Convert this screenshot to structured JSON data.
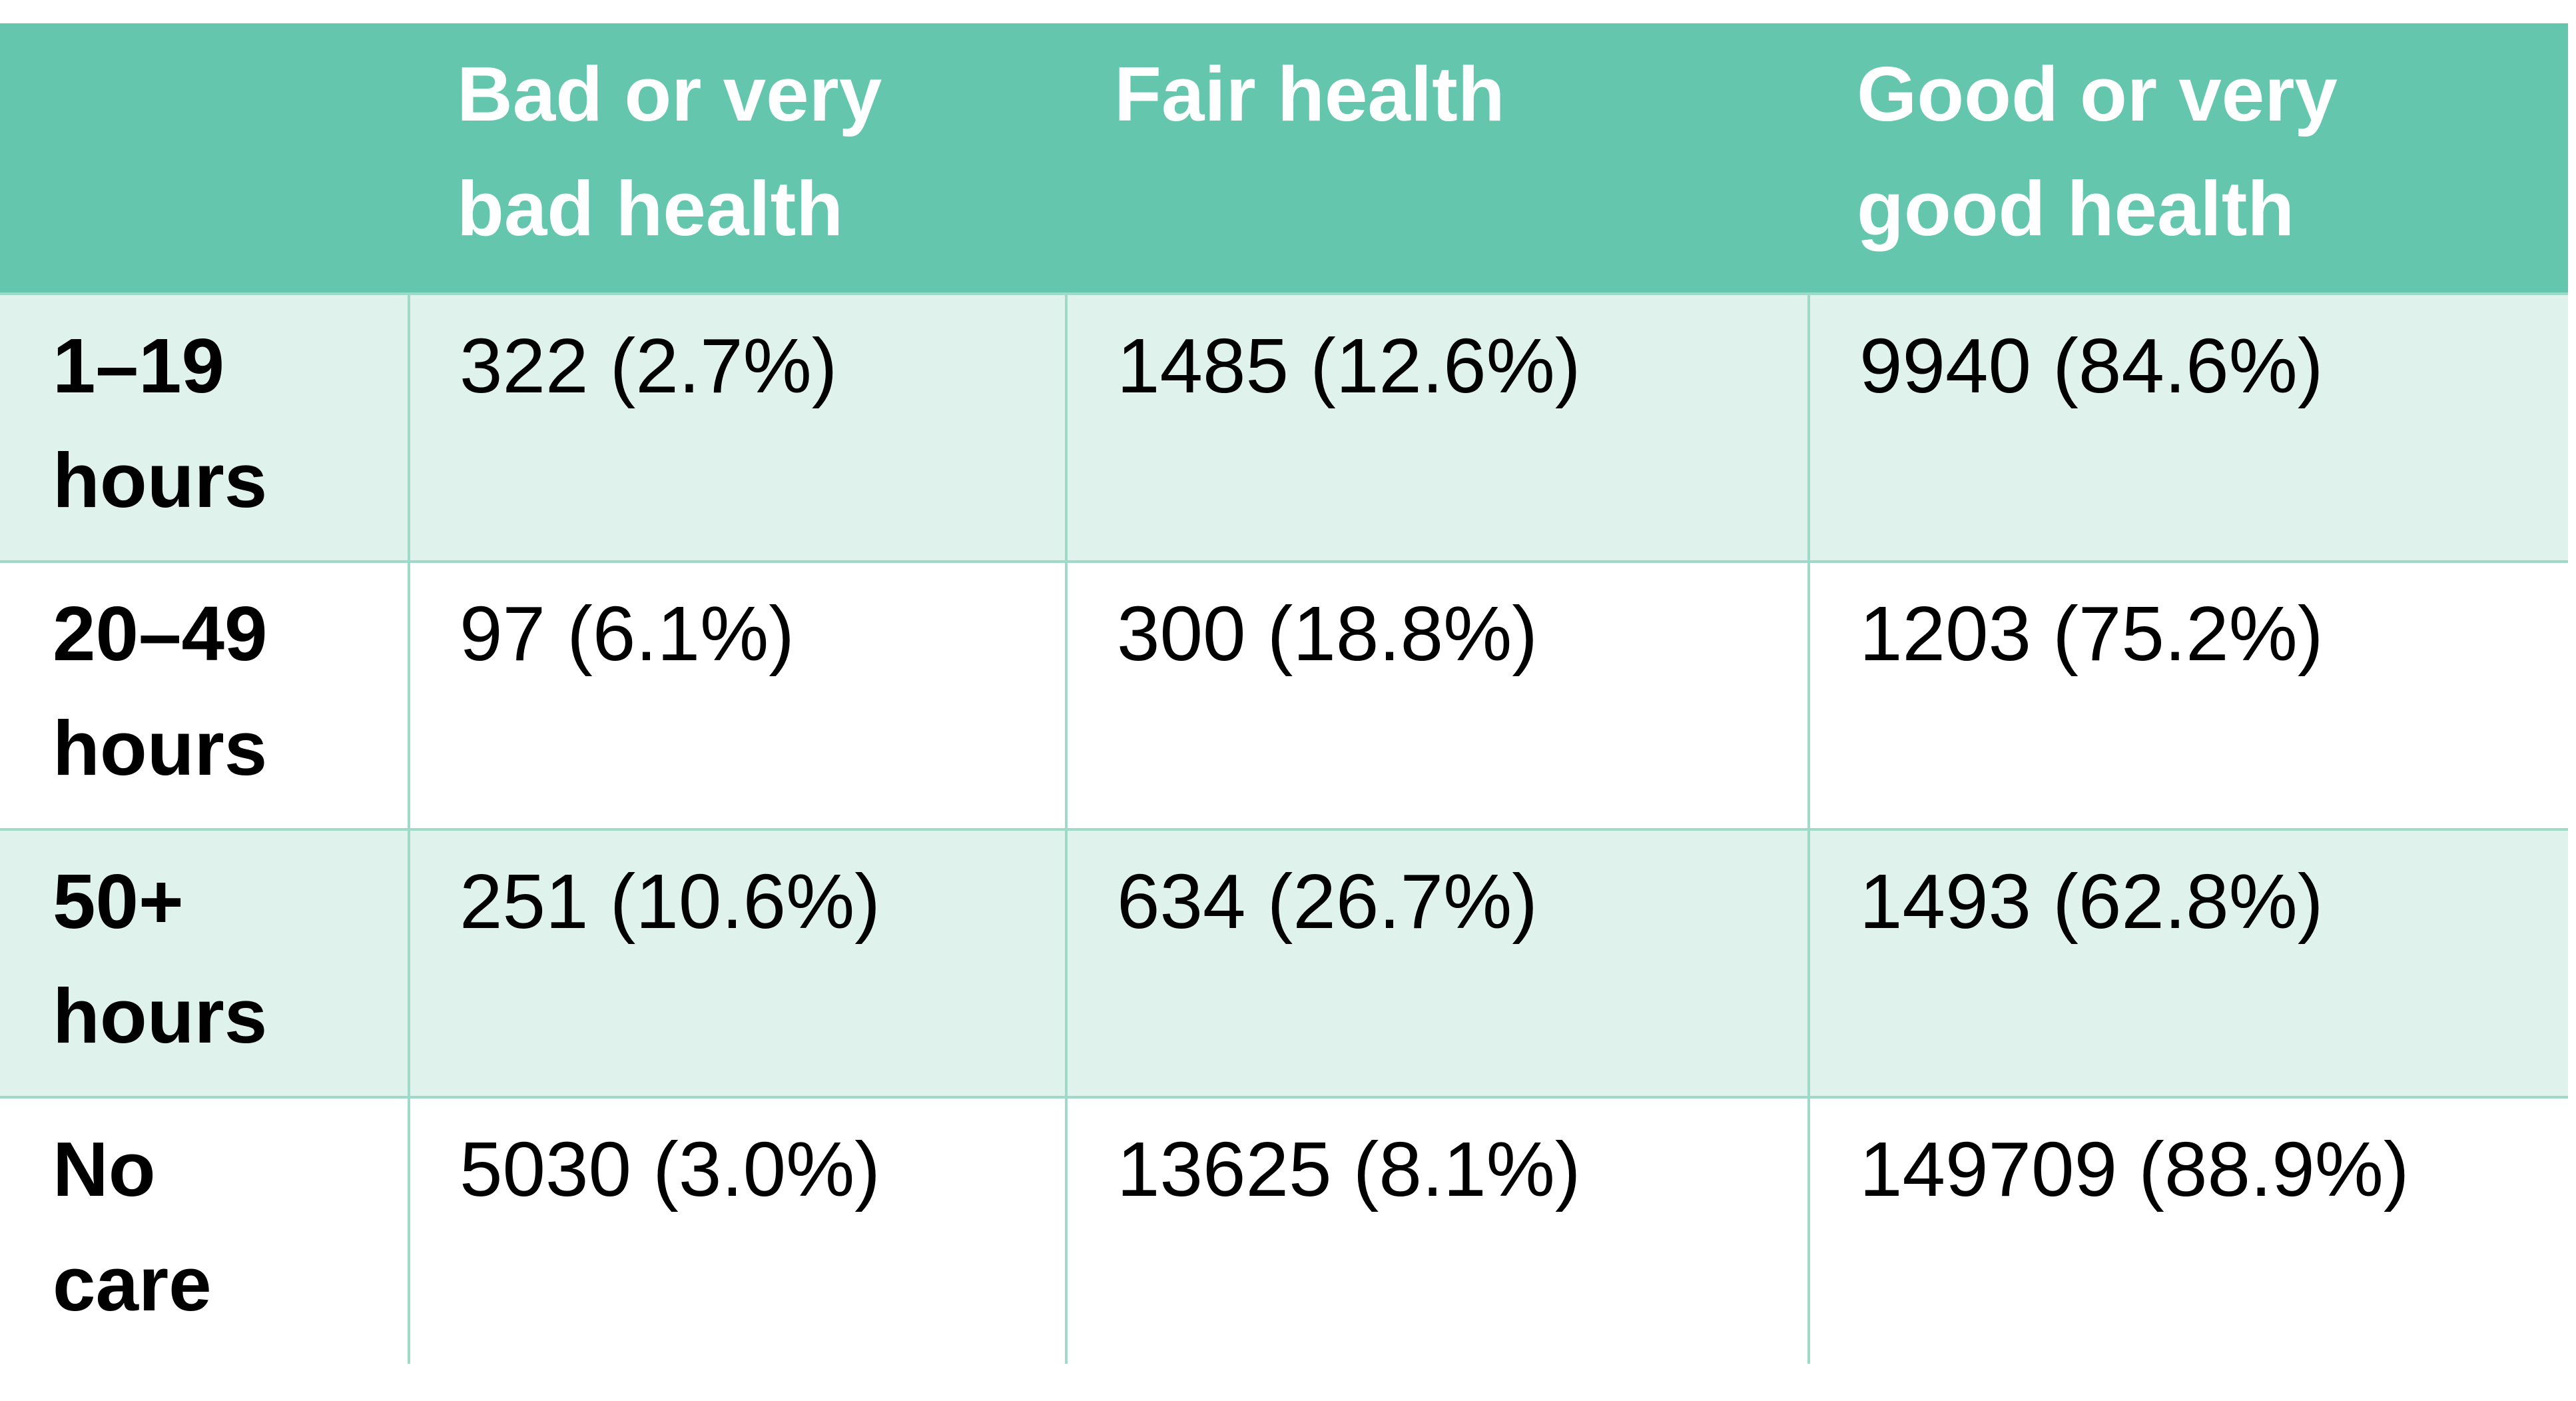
{
  "table": {
    "header": [
      [
        "Bad or very",
        "bad health"
      ],
      [
        "Fair health"
      ],
      [
        "Good or very",
        "good health"
      ]
    ],
    "rows": [
      {
        "label": [
          "1–19",
          "hours"
        ],
        "cells": [
          "322 (2.7%)",
          "1485 (12.6%)",
          "9940 (84.6%)"
        ]
      },
      {
        "label": [
          "20–49",
          "hours"
        ],
        "cells": [
          "97 (6.1%)",
          "300 (18.8%)",
          "1203 (75.2%)"
        ]
      },
      {
        "label": [
          "50+",
          "hours"
        ],
        "cells": [
          "251 (10.6%)",
          "634 (26.7%)",
          "1493 (62.8%)"
        ]
      },
      {
        "label": [
          "No",
          "care"
        ],
        "cells": [
          "5030 (3.0%)",
          "13625 (8.1%)",
          "149709 (88.9%)"
        ]
      }
    ]
  }
}
